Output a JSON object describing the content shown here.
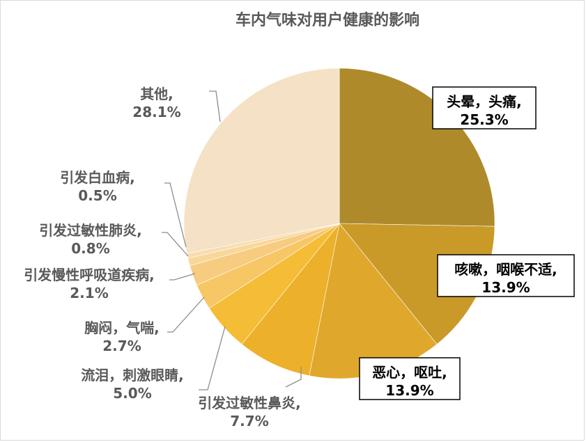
{
  "chart_data": {
    "type": "pie",
    "title": "车内气味对用户健康的影响",
    "slices": [
      {
        "name": "头晕，头痛",
        "value": 25.3,
        "label_name": "头晕，头痛,",
        "label_value": "25.3%",
        "color": "#AE8A2B"
      },
      {
        "name": "咳嗽，咽喉不适",
        "value": 13.9,
        "label_name": "咳嗽，咽喉不适,",
        "label_value": "13.9%",
        "color": "#C99A28"
      },
      {
        "name": "恶心，呕吐",
        "value": 13.9,
        "label_name": "恶心，呕吐,",
        "label_value": "13.9%",
        "color": "#DFA82C"
      },
      {
        "name": "引发过敏性鼻炎",
        "value": 7.7,
        "label_name": "引发过敏性鼻炎,",
        "label_value": "7.7%",
        "color": "#EDB02A"
      },
      {
        "name": "流泪，刺激眼睛",
        "value": 5.0,
        "label_name": "流泪，刺激眼睛,",
        "label_value": "5.0%",
        "color": "#F5BC36"
      },
      {
        "name": "胸闷，气喘",
        "value": 2.7,
        "label_name": "胸闷，气喘,",
        "label_value": "2.7%",
        "color": "#F7C766"
      },
      {
        "name": "引发慢性呼吸道疾病",
        "value": 2.1,
        "label_name": "引发慢性呼吸道疾病,",
        "label_value": "2.1%",
        "color": "#F7CB80"
      },
      {
        "name": "引发过敏性肺炎",
        "value": 0.8,
        "label_name": "引发过敏性肺炎,",
        "label_value": "0.8%",
        "color": "#F8D79B"
      },
      {
        "name": "引发白血病",
        "value": 0.5,
        "label_name": "引发白血病,",
        "label_value": "0.5%",
        "color": "#F9DDB0"
      },
      {
        "name": "其他",
        "value": 28.1,
        "label_name": "其他,",
        "label_value": "28.1%",
        "color": "#F5E1C5"
      }
    ],
    "start_angle": "12 o'clock",
    "direction": "clockwise",
    "boxed_labels": [
      "头晕，头痛",
      "咳嗽，咽喉不适",
      "恶心，呕吐"
    ]
  }
}
